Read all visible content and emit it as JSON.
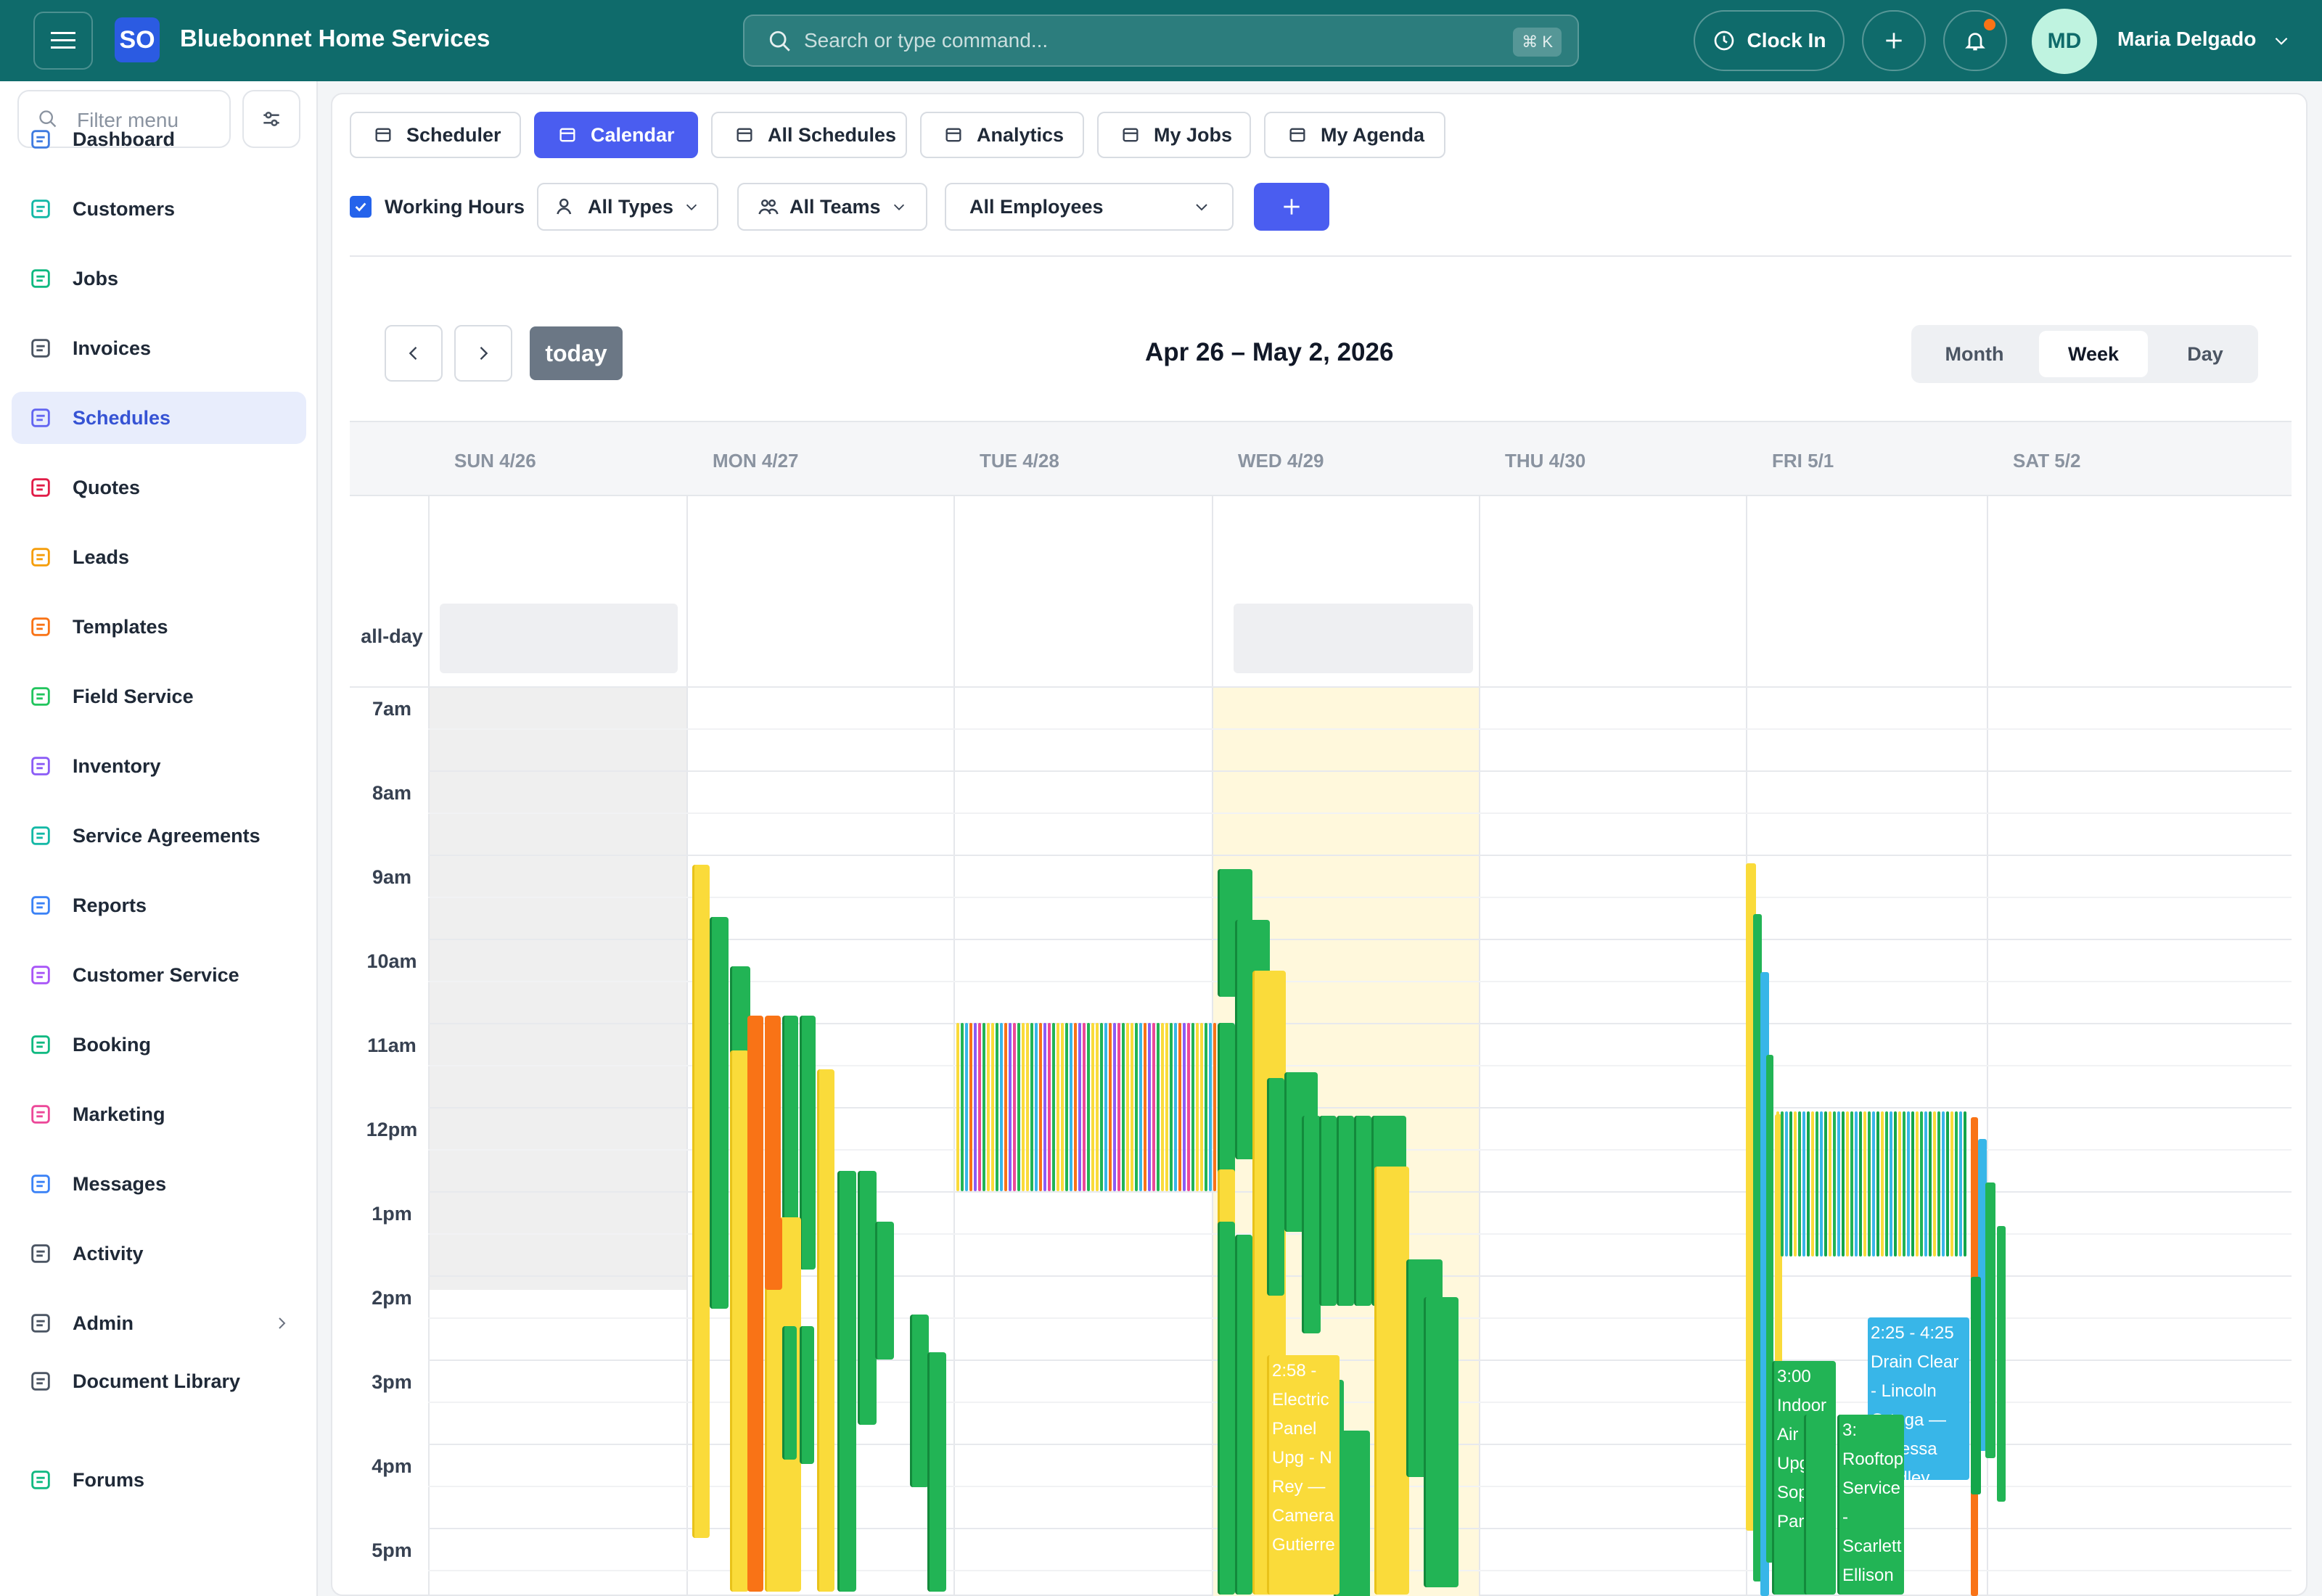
{
  "topbar": {
    "logo_text": "SO",
    "brand": "Bluebonnet Home Services",
    "search_placeholder": "Search or type command...",
    "search_shortcut": "⌘ K",
    "clock_in": "Clock In",
    "avatar_initials": "MD",
    "user_name": "Maria Delgado"
  },
  "sidebar": {
    "filter_placeholder": "Filter menu",
    "items": [
      {
        "label": "Dashboard",
        "icon": "home-icon"
      },
      {
        "label": "Customers",
        "icon": "users-icon"
      },
      {
        "label": "Jobs",
        "icon": "briefcase-icon"
      },
      {
        "label": "Invoices",
        "icon": "invoice-icon"
      },
      {
        "label": "Schedules",
        "icon": "calendar-icon"
      },
      {
        "label": "Quotes",
        "icon": "document-icon"
      },
      {
        "label": "Leads",
        "icon": "funnel-icon"
      },
      {
        "label": "Templates",
        "icon": "template-icon"
      },
      {
        "label": "Field Service",
        "icon": "wrench-icon"
      },
      {
        "label": "Inventory",
        "icon": "box-icon"
      },
      {
        "label": "Service Agreements",
        "icon": "agreement-icon"
      },
      {
        "label": "Reports",
        "icon": "bar-chart-icon"
      },
      {
        "label": "Customer Service",
        "icon": "headset-icon"
      },
      {
        "label": "Booking",
        "icon": "booking-icon"
      },
      {
        "label": "Marketing",
        "icon": "megaphone-icon"
      },
      {
        "label": "Messages",
        "icon": "chat-icon"
      },
      {
        "label": "Activity",
        "icon": "history-icon"
      },
      {
        "label": "Admin",
        "icon": "shield-icon"
      },
      {
        "label": "Document Library",
        "icon": "library-icon"
      },
      {
        "label": "Forums",
        "icon": "forum-icon"
      }
    ]
  },
  "tabs": [
    "Scheduler",
    "Calendar",
    "All Schedules",
    "Analytics",
    "My Jobs",
    "My Agenda"
  ],
  "filters": {
    "working_hours": "Working Hours",
    "types": "All Types",
    "teams": "All Teams",
    "employees": "All Employees"
  },
  "calendar": {
    "today_label": "today",
    "range": "Apr 26 – May 2, 2026",
    "views": [
      "Month",
      "Week",
      "Day"
    ],
    "active_view": "Week",
    "days": [
      "SUN 4/26",
      "MON 4/27",
      "TUE 4/28",
      "WED 4/29",
      "THU 4/30",
      "FRI 5/1",
      "SAT 5/2"
    ],
    "allday_label": "all-day",
    "hours": [
      "7am",
      "8am",
      "9am",
      "10am",
      "11am",
      "12pm",
      "1pm",
      "2pm",
      "3pm",
      "4pm",
      "5pm"
    ],
    "events": [
      {
        "time": "2:25 - 4:25",
        "title": "Drain Clear - Lincoln Ortega — Vanessa Bradley"
      },
      {
        "time": "3:00",
        "title": "Indoor Air Qu Upg - Sop Par"
      },
      {
        "time": "2:58 -",
        "title": "Electric Panel Upg - N Rey — Camera Gutierre"
      },
      {
        "time": "3:",
        "title": "Rooftop Service - Scarlett Ellison"
      }
    ]
  },
  "colors": {
    "topbar": "#0f6b6b",
    "accent": "#4a5df0",
    "green": "#22b455",
    "yellow": "#fadb3a",
    "orange": "#f97316",
    "blue": "#38b6e8"
  }
}
